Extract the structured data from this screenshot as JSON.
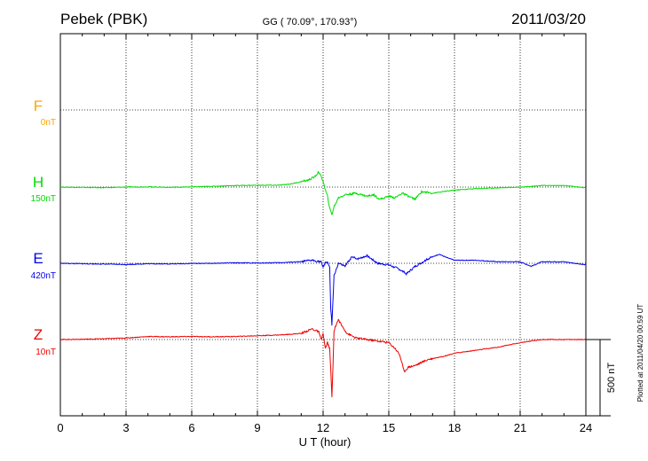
{
  "chart_data": {
    "type": "line",
    "station": "Pebek (PBK)",
    "coords": "GG ( 70.09°, 170.93°)",
    "date": "2011/03/20",
    "xlabel": "U T (hour)",
    "xlim": [
      0,
      24
    ],
    "x_ticks": [
      "0",
      "3",
      "6",
      "9",
      "12",
      "15",
      "18",
      "21",
      "24"
    ],
    "scale_label": "500 nT",
    "plotted_note": "Plotted at 2011/04/20 00:59 UT",
    "grid": "dotted",
    "series": [
      {
        "name": "F",
        "offset": "0nT",
        "color": "#FFA500",
        "x": [],
        "y": []
      },
      {
        "name": "H",
        "offset": "150nT",
        "color": "#00DD00",
        "x": [
          0,
          1,
          2,
          3,
          4,
          5,
          6,
          7,
          8,
          9,
          10,
          10.5,
          11,
          11.3,
          11.6,
          11.8,
          11.9,
          12,
          12.1,
          12.2,
          12.3,
          12.4,
          12.5,
          12.7,
          13,
          13.5,
          14,
          14.3,
          14.6,
          15,
          15.3,
          15.6,
          15.9,
          16.2,
          16.5,
          17,
          17.5,
          18,
          19,
          20,
          21,
          22,
          23,
          24
        ],
        "y": [
          0,
          -2,
          -4,
          0,
          2,
          -2,
          1,
          5,
          10,
          12,
          12,
          20,
          35,
          45,
          65,
          100,
          70,
          40,
          -20,
          -60,
          -140,
          -180,
          -130,
          -70,
          -50,
          -40,
          -60,
          -50,
          -80,
          -60,
          -70,
          -40,
          -60,
          -80,
          -30,
          -40,
          -30,
          -20,
          -10,
          -5,
          0,
          10,
          10,
          -5
        ]
      },
      {
        "name": "E",
        "offset": "420nT",
        "color": "#0000EE",
        "x": [
          0,
          1,
          2,
          3,
          4,
          5,
          6,
          7,
          8,
          9,
          10,
          11,
          11.5,
          11.9,
          12,
          12.1,
          12.2,
          12.3,
          12.35,
          12.4,
          12.45,
          12.5,
          12.7,
          13,
          13.3,
          13.6,
          14,
          14.5,
          15,
          15.5,
          15.8,
          16.2,
          16.8,
          17.3,
          17.6,
          18,
          19,
          20,
          21,
          21.5,
          22,
          23,
          24
        ],
        "y": [
          0,
          -3,
          -5,
          -8,
          -3,
          -4,
          -1,
          0,
          3,
          2,
          4,
          10,
          20,
          10,
          -30,
          5,
          10,
          -30,
          -300,
          -400,
          -250,
          -80,
          0,
          -20,
          40,
          30,
          50,
          0,
          -10,
          -40,
          -70,
          -20,
          30,
          60,
          40,
          20,
          20,
          10,
          10,
          -20,
          10,
          10,
          -10
        ]
      },
      {
        "name": "Z",
        "offset": "10nT",
        "color": "#EE0000",
        "x": [
          0,
          1,
          2,
          3,
          4,
          5,
          6,
          7,
          8,
          9,
          10,
          11,
          11.5,
          11.8,
          11.9,
          12,
          12.1,
          12.2,
          12.3,
          12.35,
          12.4,
          12.45,
          12.5,
          12.6,
          12.7,
          12.9,
          13.1,
          13.5,
          14,
          14.5,
          15,
          15.3,
          15.5,
          15.7,
          15.9,
          16.2,
          16.8,
          17.5,
          18,
          19,
          20,
          21,
          22,
          23,
          24
        ],
        "y": [
          0,
          2,
          5,
          10,
          20,
          18,
          20,
          18,
          20,
          25,
          30,
          40,
          70,
          50,
          0,
          40,
          -60,
          -20,
          -60,
          -200,
          -380,
          -180,
          60,
          100,
          130,
          80,
          40,
          10,
          0,
          -10,
          -20,
          -60,
          -100,
          -210,
          -180,
          -170,
          -130,
          -110,
          -90,
          -70,
          -50,
          -20,
          0,
          0,
          0
        ]
      }
    ]
  }
}
